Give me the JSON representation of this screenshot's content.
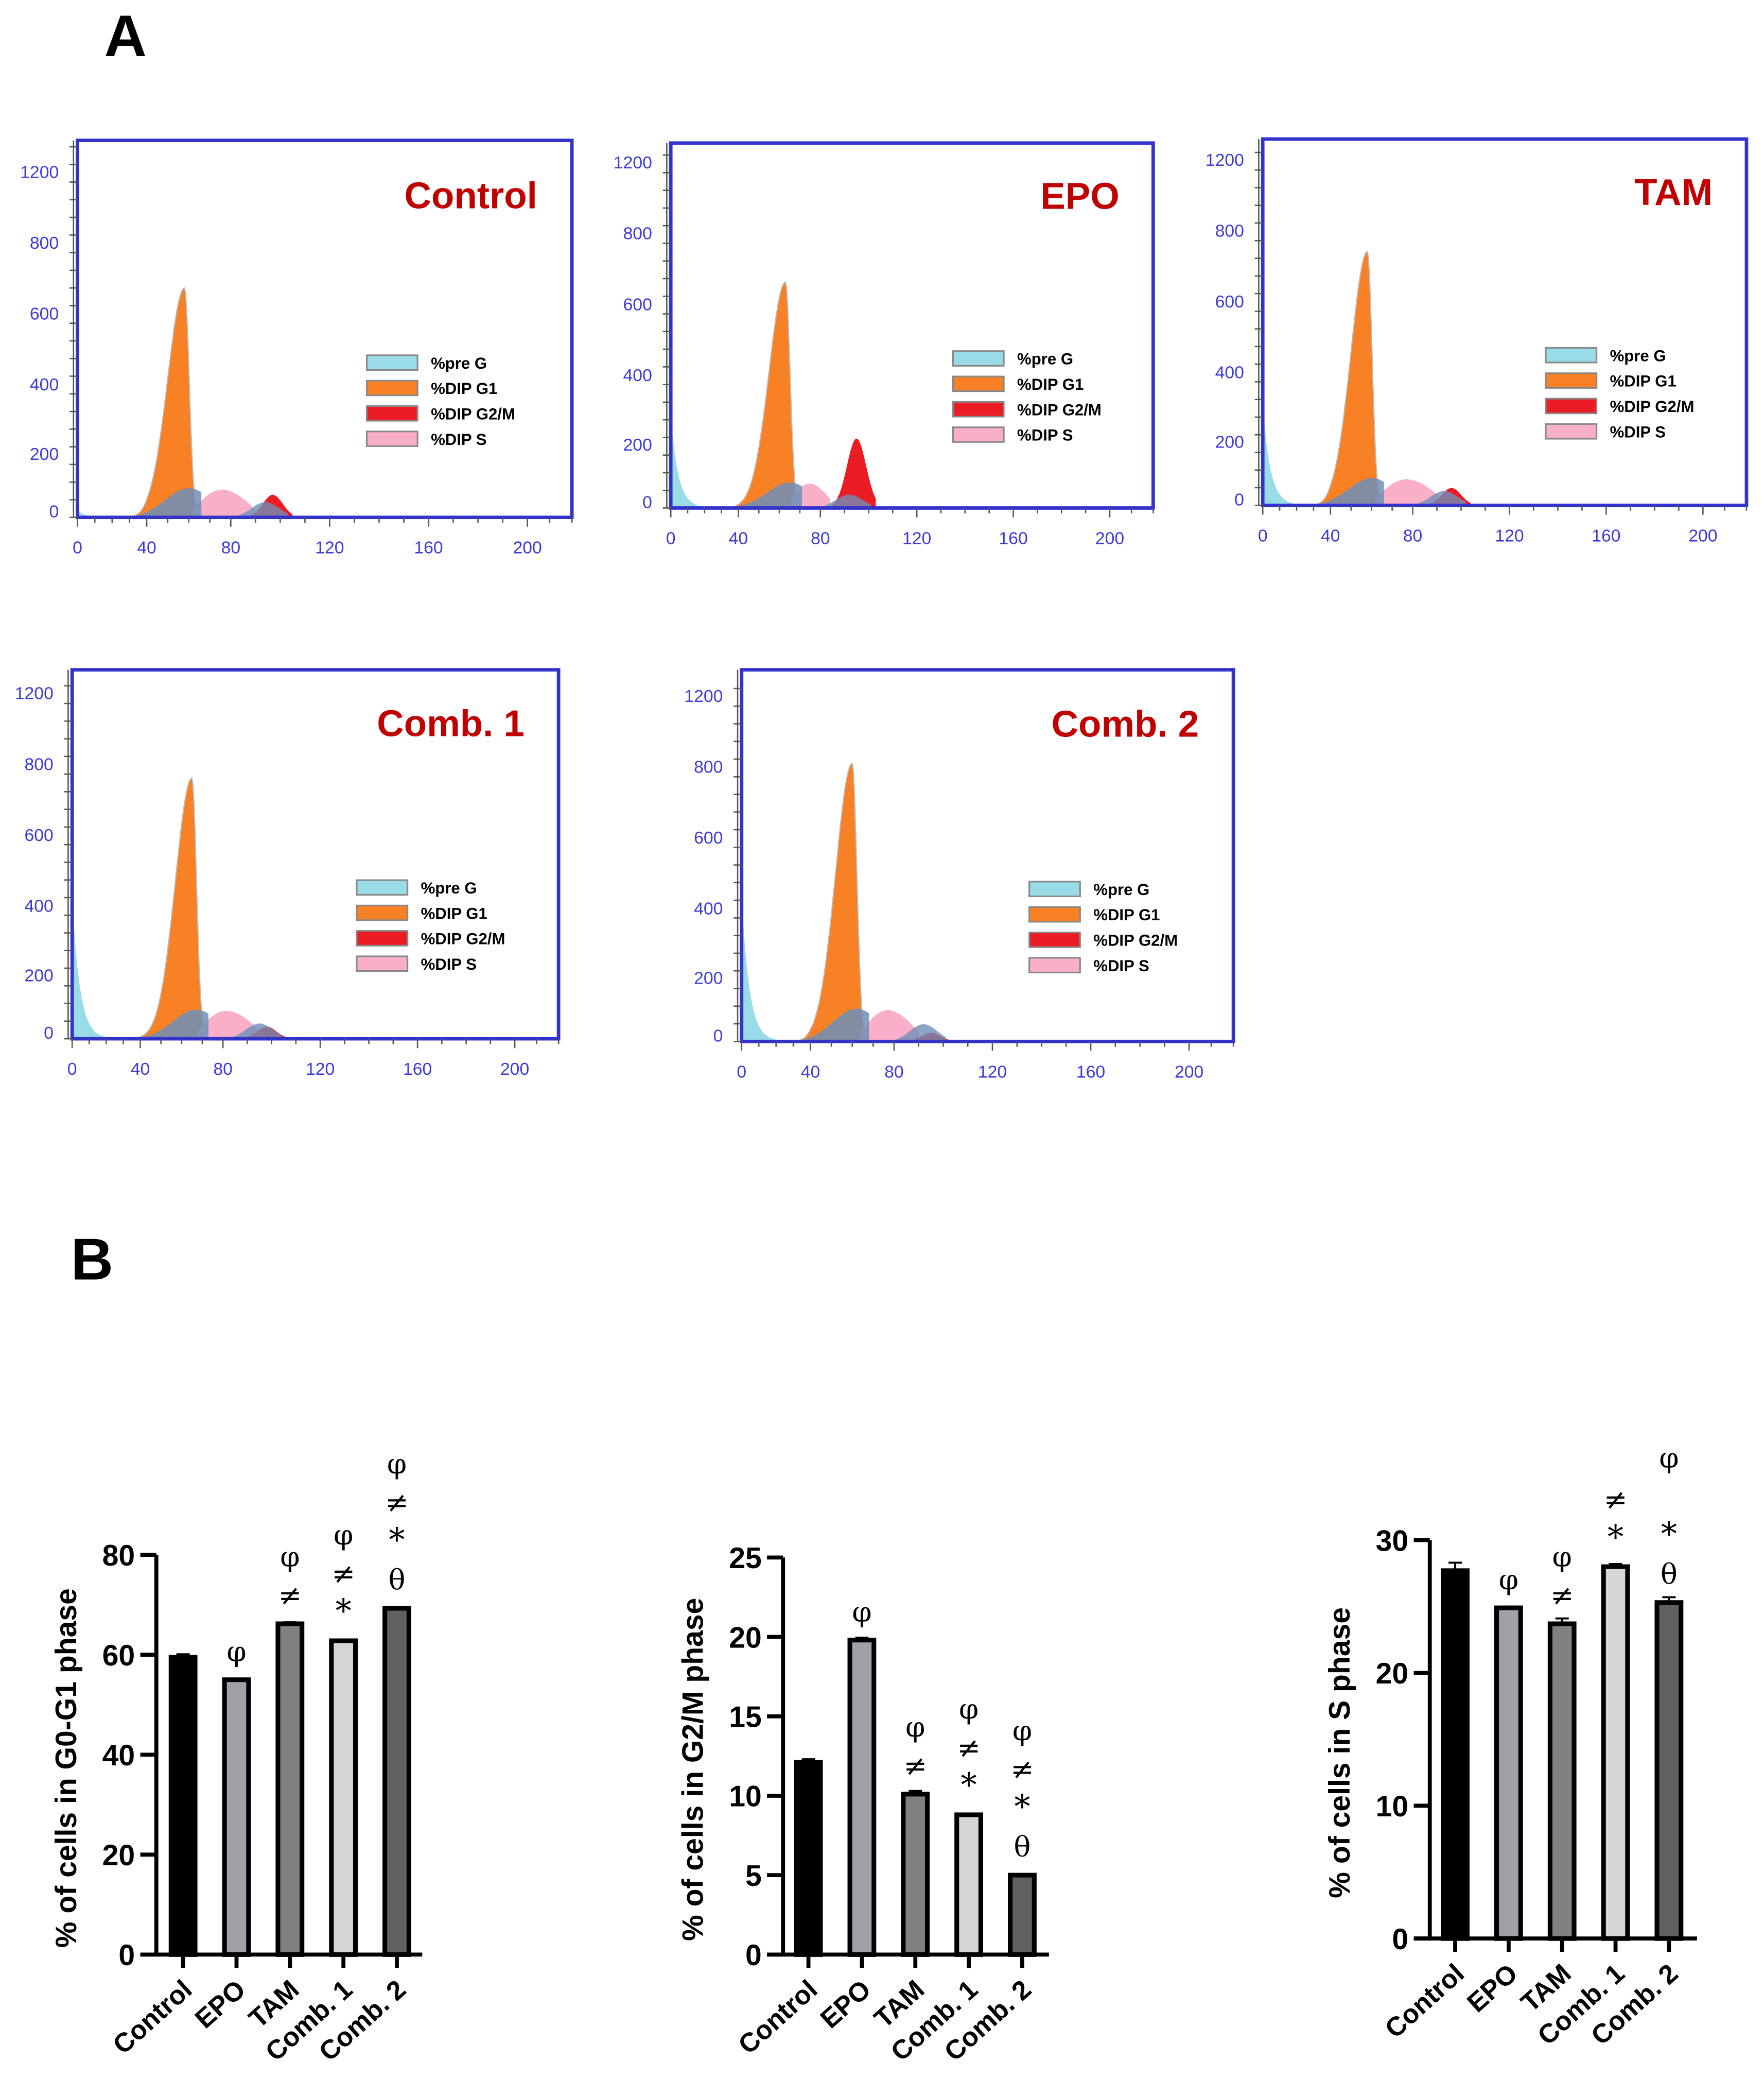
{
  "panels": {
    "a_label": "A",
    "b_label": "B"
  },
  "chart_data": {
    "histograms": {
      "type": "area",
      "xlabel": "",
      "ylabel": "",
      "x_ticks": [
        "0",
        "40",
        "80",
        "120",
        "160",
        "200"
      ],
      "y_ticks": [
        "0",
        "200",
        "400",
        "600",
        "800",
        "1200"
      ],
      "legend": [
        "%pre G",
        "%DIP G1",
        "%DIP G2/M",
        "%DIP S"
      ],
      "colors": {
        "pre_g": "#9adbe8",
        "g1": "#f98125",
        "g2m": "#ec1c24",
        "s": "#f9afc8",
        "model": "#6f8fb8",
        "axis": "#3a3ad8",
        "frame": "#3333cc",
        "title": "#c00000"
      },
      "samples": [
        {
          "title": "Control",
          "pre_g_peak": 20,
          "g1_channel": 58,
          "g1_peak": 660,
          "s_range": [
            62,
            90
          ],
          "s_height": 80,
          "g2m_channel": 97,
          "g2m_peak": 65
        },
        {
          "title": "EPO",
          "pre_g_peak": 260,
          "g1_channel": 63,
          "g1_peak": 650,
          "s_range": [
            66,
            84
          ],
          "s_height": 70,
          "g2m_channel": 95,
          "g2m_peak": 200
        },
        {
          "title": "TAM",
          "pre_g_peak": 290,
          "g1_channel": 58,
          "g1_peak": 730,
          "s_range": [
            62,
            92
          ],
          "s_height": 75,
          "g2m_channel": 96,
          "g2m_peak": 50
        },
        {
          "title": "Comb. 1",
          "pre_g_peak": 410,
          "g1_channel": 65,
          "g1_peak": 750,
          "s_range": [
            68,
            95
          ],
          "s_height": 80,
          "g2m_channel": 98,
          "g2m_peak": 35
        },
        {
          "title": "Comb. 2",
          "pre_g_peak": 420,
          "g1_channel": 60,
          "g1_peak": 800,
          "s_range": [
            64,
            90
          ],
          "s_height": 90,
          "g2m_channel": 95,
          "g2m_peak": 25
        }
      ]
    },
    "bars": [
      {
        "type": "bar",
        "title": "",
        "ylabel": "% of cells in G0-G1 phase",
        "ylim": [
          0,
          80
        ],
        "yticks": [
          "0",
          "20",
          "40",
          "60",
          "80"
        ],
        "categories": [
          "Control",
          "EPO",
          "TAM",
          "Comb. 1",
          "Comb. 2"
        ],
        "values": [
          59.5,
          55.0,
          66.2,
          62.8,
          69.3
        ],
        "errors": [
          0.6,
          0.2,
          0.3,
          0.2,
          0.3
        ],
        "annotations": [
          [],
          [
            "φ"
          ],
          [
            "φ",
            "≠"
          ],
          [
            "φ",
            "≠",
            "*"
          ],
          [
            "φ",
            "≠",
            "*",
            "θ"
          ]
        ]
      },
      {
        "type": "bar",
        "title": "",
        "ylabel": "% of cells in G2/M phase",
        "ylim": [
          0,
          25
        ],
        "yticks": [
          "0",
          "5",
          "10",
          "15",
          "20",
          "25"
        ],
        "categories": [
          "Control",
          "EPO",
          "TAM",
          "Comb. 1",
          "Comb. 2"
        ],
        "values": [
          12.1,
          19.8,
          10.1,
          8.8,
          5.0
        ],
        "errors": [
          0.2,
          0.15,
          0.2,
          0.05,
          0.05
        ],
        "annotations": [
          [],
          [
            "φ"
          ],
          [
            "φ",
            "≠"
          ],
          [
            "φ",
            "≠",
            "*"
          ],
          [
            "φ",
            "≠",
            "*",
            "θ"
          ]
        ]
      },
      {
        "type": "bar",
        "title": "",
        "ylabel": "% of cells in S phase",
        "ylim": [
          0,
          30
        ],
        "yticks": [
          "0",
          "10",
          "20",
          "30"
        ],
        "categories": [
          "Control",
          "EPO",
          "TAM",
          "Comb. 1",
          "Comb. 2"
        ],
        "values": [
          27.7,
          24.9,
          23.7,
          28.0,
          25.3
        ],
        "errors": [
          0.6,
          0.1,
          0.4,
          0.2,
          0.4
        ],
        "annotations": [
          [],
          [
            "φ"
          ],
          [
            "φ",
            "≠"
          ],
          [
            "≠",
            "*"
          ],
          [
            "φ",
            "",
            "*",
            "θ"
          ]
        ]
      }
    ],
    "bar_colors": [
      "#000000",
      "#a0a0a6",
      "#808080",
      "#d6d6d6",
      "#606060"
    ]
  }
}
